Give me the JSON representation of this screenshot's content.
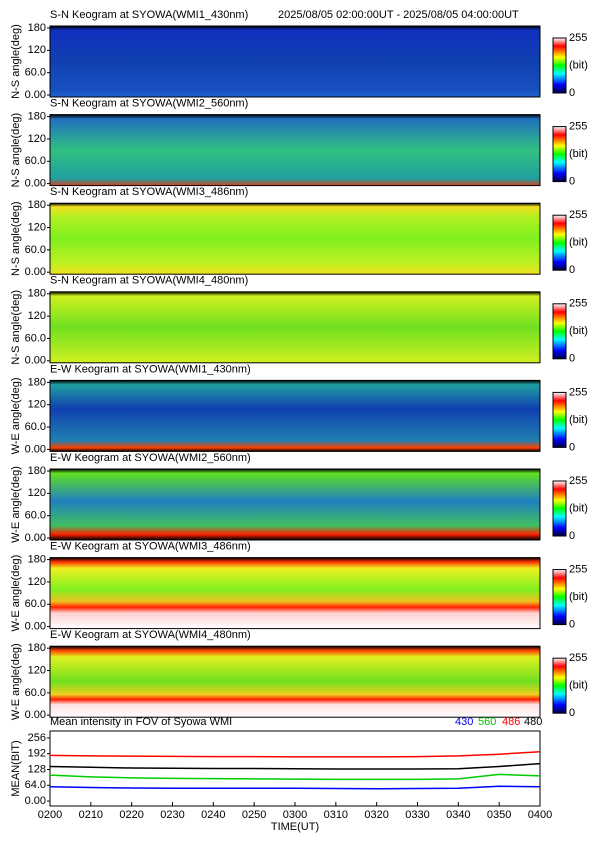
{
  "chart_data": [
    {
      "type": "heatmap",
      "title": "S-N Keogram at SYOWA(WMI1_430nm)",
      "subtitle": "2025/08/05 02:00:00UT - 2025/08/05 04:00:00UT",
      "y_label": "N-S angle(deg)",
      "ylim": [
        0,
        180
      ],
      "yticks": [
        {
          "value": 0,
          "label": "0.00"
        },
        {
          "value": 60,
          "label": "60.0"
        },
        120,
        180
      ],
      "clim": [
        0,
        255
      ],
      "cticks": [
        0,
        255
      ],
      "colorbar_label": "(bit)"
    },
    {
      "type": "heatmap",
      "title": "S-N Keogram at SYOWA(WMI2_560nm)",
      "y_label": "N-S angle(deg)",
      "ylim": [
        0,
        180
      ],
      "yticks": [
        {
          "value": 0,
          "label": "0.00"
        },
        {
          "value": 60,
          "label": "60.0"
        },
        120,
        180
      ],
      "clim": [
        0,
        255
      ],
      "cticks": [
        0,
        255
      ],
      "colorbar_label": "(bit)"
    },
    {
      "type": "heatmap",
      "title": "S-N Keogram at SYOWA(WMI3_486nm)",
      "y_label": "N-S angle(deg)",
      "ylim": [
        0,
        180
      ],
      "yticks": [
        {
          "value": 0,
          "label": "0.00"
        },
        {
          "value": 60,
          "label": "60.0"
        },
        120,
        180
      ],
      "clim": [
        0,
        255
      ],
      "cticks": [
        0,
        255
      ],
      "colorbar_label": "(bit)"
    },
    {
      "type": "heatmap",
      "title": "S-N Keogram at SYOWA(WMI4_480nm)",
      "y_label": "N-S angle(deg)",
      "ylim": [
        0,
        180
      ],
      "yticks": [
        {
          "value": 0,
          "label": "0.00"
        },
        {
          "value": 60,
          "label": "60.0"
        },
        120,
        180
      ],
      "clim": [
        0,
        255
      ],
      "cticks": [
        0,
        255
      ],
      "colorbar_label": "(bit)"
    },
    {
      "type": "heatmap",
      "title": "E-W Keogram at SYOWA(WMI1_430nm)",
      "y_label": "W-E angle(deg)",
      "ylim": [
        0,
        180
      ],
      "yticks": [
        {
          "value": 0,
          "label": "0.00"
        },
        {
          "value": 60,
          "label": "60.0"
        },
        120,
        180
      ],
      "clim": [
        0,
        255
      ],
      "cticks": [
        0,
        255
      ],
      "colorbar_label": "(bit)"
    },
    {
      "type": "heatmap",
      "title": "E-W Keogram at SYOWA(WMI2_560nm)",
      "y_label": "W-E angle(deg)",
      "ylim": [
        0,
        180
      ],
      "yticks": [
        {
          "value": 0,
          "label": "0.00"
        },
        {
          "value": 60,
          "label": "60.0"
        },
        120,
        180
      ],
      "clim": [
        0,
        255
      ],
      "cticks": [
        0,
        255
      ],
      "colorbar_label": "(bit)"
    },
    {
      "type": "heatmap",
      "title": "E-W Keogram at SYOWA(WMI3_486nm)",
      "y_label": "W-E angle(deg)",
      "ylim": [
        0,
        180
      ],
      "yticks": [
        {
          "value": 0,
          "label": "0.00"
        },
        {
          "value": 60,
          "label": "60.0"
        },
        120,
        180
      ],
      "clim": [
        0,
        255
      ],
      "cticks": [
        0,
        255
      ],
      "colorbar_label": "(bit)"
    },
    {
      "type": "heatmap",
      "title": "E-W Keogram at SYOWA(WMI4_480nm)",
      "y_label": "W-E angle(deg)",
      "ylim": [
        0,
        180
      ],
      "yticks": [
        {
          "value": 0,
          "label": "0.00"
        },
        {
          "value": 60,
          "label": "60.0"
        },
        120,
        180
      ],
      "clim": [
        0,
        255
      ],
      "cticks": [
        0,
        255
      ],
      "colorbar_label": "(bit)"
    },
    {
      "type": "line",
      "title": "Mean intensity in FOV of Syowa WMI",
      "x_label": "TIME(UT)",
      "y_label": "MEAN(BIT)",
      "x": [
        0,
        10,
        20,
        30,
        40,
        50,
        60,
        70,
        80,
        90,
        100,
        110,
        120
      ],
      "xlim": [
        0,
        120
      ],
      "xticks": [
        {
          "value": 0,
          "label": "0200"
        },
        {
          "value": 10,
          "label": "0210"
        },
        {
          "value": 20,
          "label": "0220"
        },
        {
          "value": 30,
          "label": "0230"
        },
        {
          "value": 40,
          "label": "0240"
        },
        {
          "value": 50,
          "label": "0250"
        },
        {
          "value": 60,
          "label": "0300"
        },
        {
          "value": 70,
          "label": "0310"
        },
        {
          "value": 80,
          "label": "0320"
        },
        {
          "value": 90,
          "label": "0330"
        },
        {
          "value": 100,
          "label": "0340"
        },
        {
          "value": 110,
          "label": "0350"
        },
        {
          "value": 120,
          "label": "0400"
        }
      ],
      "ylim": [
        -20,
        284
      ],
      "yticks": [
        {
          "value": 0,
          "label": "0.00"
        },
        {
          "value": 64,
          "label": "64.0"
        },
        128,
        192,
        256
      ],
      "series": [
        {
          "name": "430",
          "color": "#0000ff",
          "values": [
            58,
            55,
            53,
            52,
            52,
            52,
            52,
            51,
            50,
            51,
            52,
            60,
            58
          ]
        },
        {
          "name": "560",
          "color": "#00cc00",
          "values": [
            105,
            98,
            94,
            92,
            91,
            90,
            89,
            88,
            88,
            88,
            90,
            108,
            102
          ]
        },
        {
          "name": "486",
          "color": "#ff0000",
          "values": [
            185,
            183,
            182,
            181,
            180,
            180,
            179,
            179,
            179,
            180,
            183,
            190,
            200
          ]
        },
        {
          "name": "480",
          "color": "#000000",
          "values": [
            140,
            137,
            134,
            133,
            132,
            132,
            131,
            130,
            130,
            130,
            131,
            140,
            152
          ]
        }
      ]
    }
  ]
}
